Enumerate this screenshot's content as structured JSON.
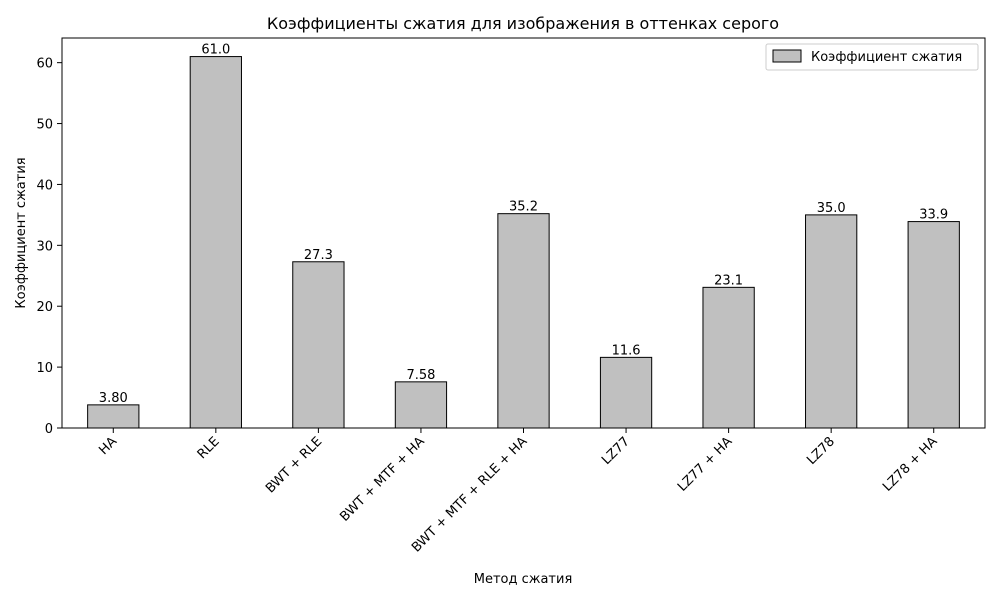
{
  "chart_data": {
    "type": "bar",
    "title": "Коэффициенты сжатия для изображения в оттенках серого",
    "xlabel": "Метод сжатия",
    "ylabel": "Коэффициент сжатия",
    "categories": [
      "HA",
      "RLE",
      "BWT + RLE",
      "BWT + MTF + HA",
      "BWT + MTF + RLE + HA",
      "LZ77",
      "LZ77 + HA",
      "LZ78",
      "LZ78 + HA"
    ],
    "series": [
      {
        "name": "Коэффициент сжатия",
        "values": [
          3.8,
          61.0,
          27.3,
          7.58,
          35.2,
          11.6,
          23.1,
          35.0,
          33.9
        ],
        "color": "#c0c0c0"
      }
    ],
    "data_labels": [
      "3.80",
      "61.0",
      "27.3",
      "7.58",
      "35.2",
      "11.6",
      "23.1",
      "35.0",
      "33.9"
    ],
    "yticks": [
      0,
      10,
      20,
      30,
      40,
      50,
      60
    ],
    "ylim": [
      0,
      64.05
    ],
    "grid": false,
    "legend_position": "top-right",
    "edge_color": "#000000"
  }
}
